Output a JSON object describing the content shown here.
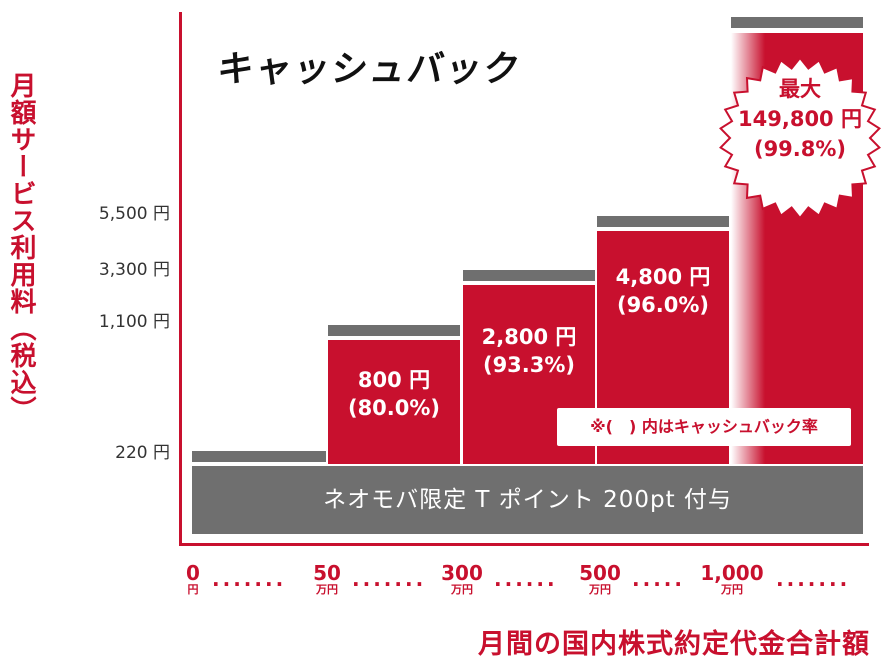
{
  "title": "キャッシュバック",
  "ylabel": "月額サービス利用料（税込）",
  "xlabel": "月間の国内株式約定代金合計額",
  "note": "※(　) 内はキャッシュバック率",
  "base": {
    "label": "ネオモバ限定 T ポイント 200pt 付与",
    "fee": "220 円"
  },
  "colors": {
    "accent": "#c8102e",
    "cap": "#6f6f6f"
  },
  "chart_data": {
    "type": "bar",
    "title": "キャッシュバック",
    "ylabel": "月額サービス利用料（税込）",
    "xlabel": "月間の国内株式約定代金合計額",
    "x_ticks": [
      {
        "num": "0",
        "unit": "円"
      },
      {
        "num": "50",
        "unit": "万円"
      },
      {
        "num": "300",
        "unit": "万円"
      },
      {
        "num": "500",
        "unit": "万円"
      },
      {
        "num": "1,000",
        "unit": "万円"
      }
    ],
    "y_ticks": [
      {
        "label": "220 円",
        "value": 220
      },
      {
        "label": "1,100 円",
        "value": 1100
      },
      {
        "label": "3,300 円",
        "value": 3300
      },
      {
        "label": "5,500 円",
        "value": 5500
      }
    ],
    "categories": [
      "0〜50万円",
      "50〜300万円",
      "300〜500万円",
      "500〜1,000万円",
      "1,000万円〜"
    ],
    "fees": [
      220,
      1100,
      3300,
      5500,
      150000
    ],
    "cashback": [
      0,
      800,
      2800,
      4800,
      149800
    ],
    "cashback_rate": [
      null,
      80.0,
      93.3,
      96.0,
      99.8
    ],
    "bar_labels": [
      {
        "amount": "",
        "rate": ""
      },
      {
        "amount": "800 円",
        "rate": "(80.0%)"
      },
      {
        "amount": "2,800 円",
        "rate": "(93.3%)"
      },
      {
        "amount": "4,800 円",
        "rate": "(96.0%)"
      },
      {
        "head": "最大",
        "amount": "149,800 円",
        "rate": "(99.8%)"
      }
    ]
  }
}
